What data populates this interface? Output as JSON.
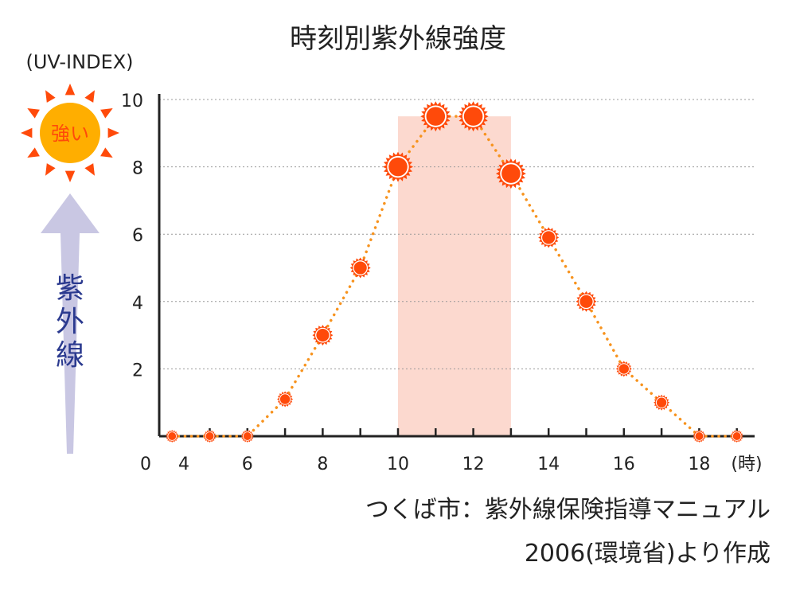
{
  "chart_data": {
    "type": "line",
    "title": "時刻別紫外線強度",
    "ylabel_unit": "(UV-INDEX)",
    "ylabel": "紫外線",
    "sun_label": "強い",
    "xlabel_unit": "(時)",
    "x_origin_label": "0",
    "x": [
      4,
      5,
      6,
      7,
      8,
      9,
      10,
      11,
      12,
      13,
      14,
      15,
      16,
      17,
      18,
      19
    ],
    "values": [
      0,
      0,
      0,
      1.1,
      3,
      5,
      8,
      9.5,
      9.5,
      7.8,
      5.9,
      4,
      2,
      1,
      0,
      0
    ],
    "x_tick_labels": [
      "4",
      "6",
      "8",
      "10",
      "12",
      "14",
      "16",
      "18"
    ],
    "y_ticks": [
      2,
      4,
      6,
      8,
      10
    ],
    "ylim": [
      0,
      10
    ],
    "highlight_range": [
      10,
      13
    ],
    "grid": "horizontal dotted",
    "colors": {
      "line": "#f7931e",
      "marker": "#ff4a0a",
      "highlight": "#fcd9cf",
      "sun": "#ffae00",
      "arrow": "#c9c7e3",
      "ylabel": "#2b3a8f"
    },
    "source": [
      "つくば市：紫外線保険指導マニュアル",
      "2006(環境省)より作成"
    ]
  }
}
